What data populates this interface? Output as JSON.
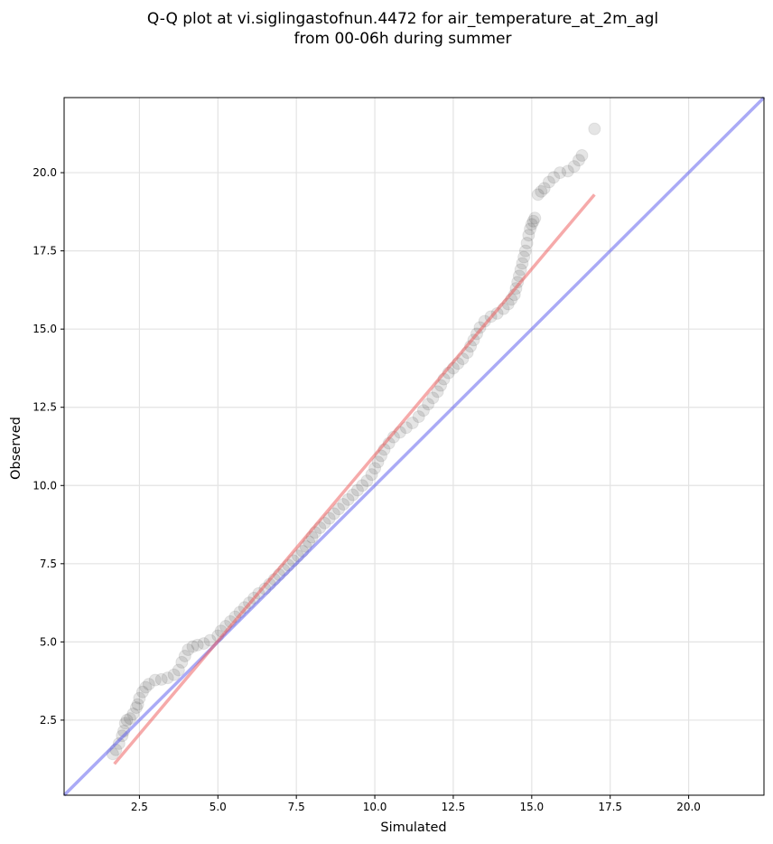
{
  "chart_data": {
    "type": "scatter",
    "title_lines": [
      "Q-Q plot at vi.siglingastofnun.4472 for air_temperature_at_2m_agl",
      "from 00-06h during summer"
    ],
    "xlabel": "Simulated",
    "ylabel": "Observed",
    "xlim": [
      0.1,
      22.4
    ],
    "ylim": [
      0.1,
      22.4
    ],
    "x_ticks": [
      2.5,
      5.0,
      7.5,
      10.0,
      12.5,
      15.0,
      17.5,
      20.0
    ],
    "y_ticks": [
      2.5,
      5.0,
      7.5,
      10.0,
      12.5,
      15.0,
      17.5,
      20.0
    ],
    "x_tick_labels": [
      "2.5",
      "5.0",
      "7.5",
      "10.0",
      "12.5",
      "15.0",
      "17.5",
      "20.0"
    ],
    "y_tick_labels": [
      "2.5",
      "5.0",
      "7.5",
      "10.0",
      "12.5",
      "15.0",
      "17.5",
      "20.0"
    ],
    "grid": true,
    "point_color": "#000000",
    "point_opacity": 0.1,
    "reference_line": {
      "from": [
        0.1,
        0.1
      ],
      "to": [
        22.4,
        22.4
      ],
      "color": "#5555ee"
    },
    "fit_line": {
      "from": [
        1.7,
        1.1
      ],
      "to": [
        17.0,
        19.3
      ],
      "color": "#ee5555"
    },
    "series": [
      {
        "points": [
          [
            1.65,
            1.42
          ],
          [
            1.75,
            1.55
          ],
          [
            1.85,
            1.75
          ],
          [
            1.95,
            2.0
          ],
          [
            2.0,
            2.15
          ],
          [
            2.05,
            2.4
          ],
          [
            2.1,
            2.5
          ],
          [
            2.2,
            2.55
          ],
          [
            2.3,
            2.7
          ],
          [
            2.4,
            2.9
          ],
          [
            2.45,
            3.0
          ],
          [
            2.5,
            3.2
          ],
          [
            2.6,
            3.4
          ],
          [
            2.7,
            3.55
          ],
          [
            2.8,
            3.65
          ],
          [
            3.0,
            3.78
          ],
          [
            3.2,
            3.8
          ],
          [
            3.4,
            3.85
          ],
          [
            3.6,
            3.95
          ],
          [
            3.75,
            4.1
          ],
          [
            3.85,
            4.35
          ],
          [
            3.95,
            4.55
          ],
          [
            4.05,
            4.75
          ],
          [
            4.2,
            4.85
          ],
          [
            4.35,
            4.9
          ],
          [
            4.55,
            4.95
          ],
          [
            4.75,
            5.05
          ],
          [
            5.0,
            5.2
          ],
          [
            5.1,
            5.35
          ],
          [
            5.25,
            5.5
          ],
          [
            5.4,
            5.65
          ],
          [
            5.55,
            5.8
          ],
          [
            5.7,
            5.95
          ],
          [
            5.85,
            6.1
          ],
          [
            6.0,
            6.25
          ],
          [
            6.15,
            6.4
          ],
          [
            6.3,
            6.55
          ],
          [
            6.5,
            6.7
          ],
          [
            6.65,
            6.85
          ],
          [
            6.8,
            7.0
          ],
          [
            6.95,
            7.15
          ],
          [
            7.1,
            7.3
          ],
          [
            7.25,
            7.45
          ],
          [
            7.4,
            7.6
          ],
          [
            7.55,
            7.75
          ],
          [
            7.7,
            7.9
          ],
          [
            7.8,
            8.05
          ],
          [
            7.9,
            8.2
          ],
          [
            8.0,
            8.35
          ],
          [
            8.1,
            8.5
          ],
          [
            8.25,
            8.65
          ],
          [
            8.4,
            8.8
          ],
          [
            8.55,
            8.95
          ],
          [
            8.7,
            9.1
          ],
          [
            8.85,
            9.25
          ],
          [
            9.0,
            9.4
          ],
          [
            9.15,
            9.55
          ],
          [
            9.3,
            9.7
          ],
          [
            9.45,
            9.85
          ],
          [
            9.6,
            10.0
          ],
          [
            9.75,
            10.15
          ],
          [
            9.9,
            10.35
          ],
          [
            10.0,
            10.55
          ],
          [
            10.1,
            10.75
          ],
          [
            10.2,
            10.95
          ],
          [
            10.3,
            11.15
          ],
          [
            10.45,
            11.35
          ],
          [
            10.6,
            11.55
          ],
          [
            10.8,
            11.7
          ],
          [
            11.0,
            11.85
          ],
          [
            11.2,
            12.0
          ],
          [
            11.4,
            12.2
          ],
          [
            11.55,
            12.4
          ],
          [
            11.7,
            12.6
          ],
          [
            11.85,
            12.8
          ],
          [
            12.0,
            13.0
          ],
          [
            12.1,
            13.2
          ],
          [
            12.2,
            13.4
          ],
          [
            12.35,
            13.6
          ],
          [
            12.5,
            13.75
          ],
          [
            12.65,
            13.9
          ],
          [
            12.8,
            14.05
          ],
          [
            12.95,
            14.25
          ],
          [
            13.05,
            14.45
          ],
          [
            13.15,
            14.65
          ],
          [
            13.25,
            14.85
          ],
          [
            13.35,
            15.05
          ],
          [
            13.5,
            15.25
          ],
          [
            13.7,
            15.4
          ],
          [
            13.9,
            15.5
          ],
          [
            14.1,
            15.65
          ],
          [
            14.25,
            15.8
          ],
          [
            14.35,
            15.95
          ],
          [
            14.45,
            16.1
          ],
          [
            14.5,
            16.3
          ],
          [
            14.55,
            16.5
          ],
          [
            14.6,
            16.7
          ],
          [
            14.65,
            16.9
          ],
          [
            14.7,
            17.1
          ],
          [
            14.75,
            17.3
          ],
          [
            14.8,
            17.5
          ],
          [
            14.85,
            17.75
          ],
          [
            14.9,
            18.0
          ],
          [
            14.95,
            18.2
          ],
          [
            15.0,
            18.35
          ],
          [
            15.05,
            18.45
          ],
          [
            15.1,
            18.55
          ],
          [
            15.2,
            19.3
          ],
          [
            15.3,
            19.4
          ],
          [
            15.4,
            19.5
          ],
          [
            15.55,
            19.7
          ],
          [
            15.7,
            19.85
          ],
          [
            15.9,
            20.0
          ],
          [
            16.15,
            20.05
          ],
          [
            16.35,
            20.2
          ],
          [
            16.5,
            20.4
          ],
          [
            16.6,
            20.55
          ],
          [
            17.0,
            21.4
          ]
        ]
      }
    ]
  }
}
